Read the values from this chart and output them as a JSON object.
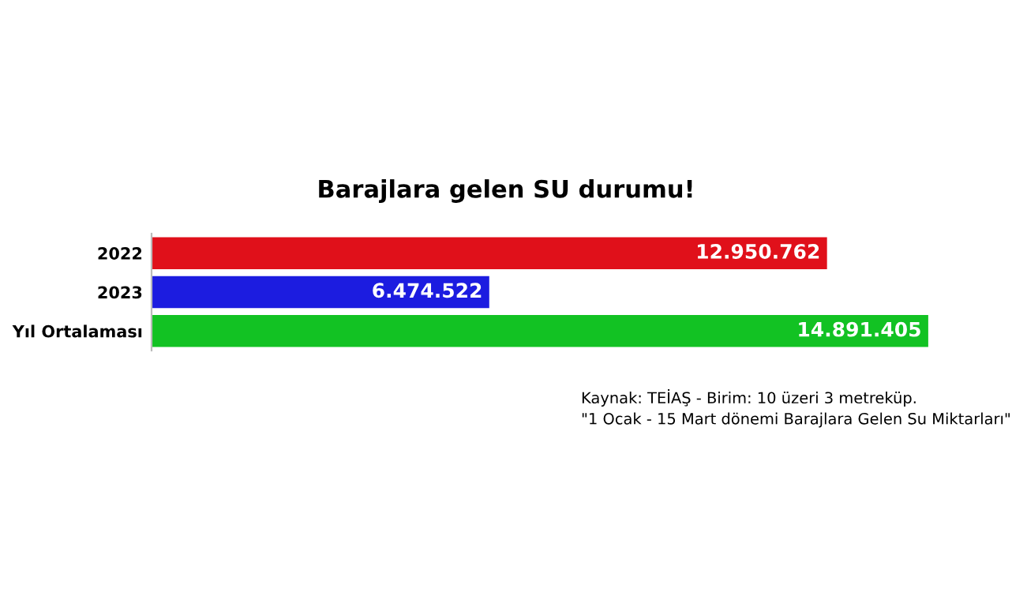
{
  "chart_data": {
    "type": "bar",
    "orientation": "horizontal",
    "title": "Barajlara gelen SU durumu!",
    "categories": [
      "2022",
      "2023",
      "Yıl Ortalaması"
    ],
    "values": [
      12950762,
      6474522,
      14891405
    ],
    "colors": [
      "#e0101a",
      "#1c1ce0",
      "#12c223"
    ],
    "value_labels": [
      "12.950.762",
      "6.474.522",
      "14.891.405"
    ],
    "annotations": [
      "Kaynak: TEİAŞ - Birim: 10 üzeri 3 metreküp.",
      "\"1 Ocak - 15 Mart dönemi Barajlara Gelen Su Miktarları\""
    ],
    "grid": false,
    "legend": false
  }
}
